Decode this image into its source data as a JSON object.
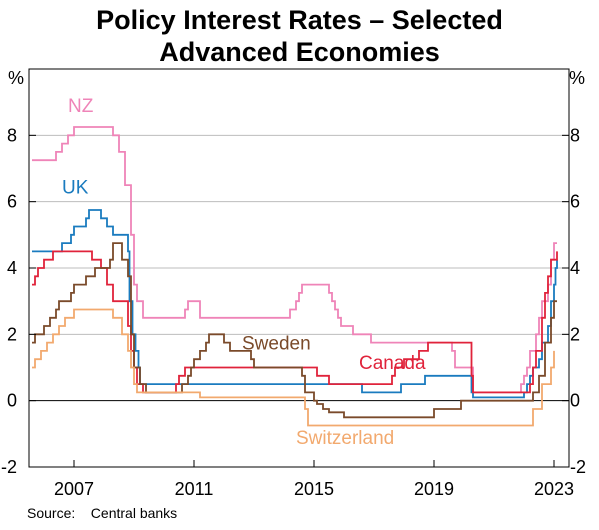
{
  "chart_data": {
    "type": "line",
    "title": "Policy Interest Rates – Selected Advanced Economies",
    "title_lines": [
      "Policy Interest Rates – Selected",
      "Advanced Economies"
    ],
    "y_unit_left": "%",
    "y_unit_right": "%",
    "ylim": [
      -2,
      10
    ],
    "yticks": [
      "-2",
      "0",
      "2",
      "4",
      "6",
      "8"
    ],
    "xlim": [
      2005.5,
      2023.5
    ],
    "xticks": [
      "2007",
      "2011",
      "2015",
      "2019",
      "2023"
    ],
    "grid": true,
    "source": "Source:    Central banks",
    "series": [
      {
        "name": "NZ",
        "color": "#ef84b8",
        "label_pos": [
          2006.8,
          8.7
        ],
        "points": [
          [
            2005.6,
            7.25
          ],
          [
            2006.3,
            7.25
          ],
          [
            2006.4,
            7.5
          ],
          [
            2006.6,
            7.75
          ],
          [
            2006.8,
            8.0
          ],
          [
            2007.0,
            8.25
          ],
          [
            2007.9,
            8.25
          ],
          [
            2008.3,
            8.0
          ],
          [
            2008.5,
            7.5
          ],
          [
            2008.7,
            6.5
          ],
          [
            2008.9,
            5.0
          ],
          [
            2009.0,
            3.5
          ],
          [
            2009.1,
            3.0
          ],
          [
            2009.3,
            2.5
          ],
          [
            2010.6,
            2.5
          ],
          [
            2010.7,
            2.75
          ],
          [
            2010.8,
            3.0
          ],
          [
            2011.1,
            3.0
          ],
          [
            2011.2,
            2.5
          ],
          [
            2014.1,
            2.5
          ],
          [
            2014.2,
            2.75
          ],
          [
            2014.4,
            3.0
          ],
          [
            2014.5,
            3.25
          ],
          [
            2014.6,
            3.5
          ],
          [
            2015.4,
            3.5
          ],
          [
            2015.5,
            3.25
          ],
          [
            2015.6,
            3.0
          ],
          [
            2015.7,
            2.75
          ],
          [
            2015.8,
            2.5
          ],
          [
            2015.9,
            2.25
          ],
          [
            2016.2,
            2.25
          ],
          [
            2016.3,
            2.0
          ],
          [
            2016.7,
            2.0
          ],
          [
            2016.9,
            1.75
          ],
          [
            2019.4,
            1.75
          ],
          [
            2019.6,
            1.5
          ],
          [
            2019.7,
            1.0
          ],
          [
            2020.2,
            1.0
          ],
          [
            2020.3,
            0.25
          ],
          [
            2021.8,
            0.25
          ],
          [
            2021.9,
            0.5
          ],
          [
            2022.0,
            0.75
          ],
          [
            2022.1,
            1.0
          ],
          [
            2022.2,
            1.5
          ],
          [
            2022.4,
            2.0
          ],
          [
            2022.5,
            2.5
          ],
          [
            2022.6,
            3.0
          ],
          [
            2022.8,
            3.5
          ],
          [
            2022.9,
            4.25
          ],
          [
            2023.0,
            4.75
          ],
          [
            2023.1,
            4.75
          ]
        ]
      },
      {
        "name": "UK",
        "color": "#1a7bbf",
        "label_pos": [
          2006.6,
          6.25
        ],
        "points": [
          [
            2005.6,
            4.5
          ],
          [
            2006.4,
            4.5
          ],
          [
            2006.6,
            4.75
          ],
          [
            2006.9,
            5.0
          ],
          [
            2007.0,
            5.25
          ],
          [
            2007.4,
            5.5
          ],
          [
            2007.5,
            5.75
          ],
          [
            2007.9,
            5.5
          ],
          [
            2008.1,
            5.25
          ],
          [
            2008.3,
            5.0
          ],
          [
            2008.8,
            4.5
          ],
          [
            2008.85,
            3.0
          ],
          [
            2008.95,
            2.0
          ],
          [
            2009.05,
            1.5
          ],
          [
            2009.15,
            1.0
          ],
          [
            2009.2,
            0.5
          ],
          [
            2016.5,
            0.5
          ],
          [
            2016.6,
            0.25
          ],
          [
            2017.8,
            0.25
          ],
          [
            2017.9,
            0.5
          ],
          [
            2018.6,
            0.5
          ],
          [
            2018.7,
            0.75
          ],
          [
            2020.2,
            0.75
          ],
          [
            2020.25,
            0.25
          ],
          [
            2020.3,
            0.1
          ],
          [
            2021.9,
            0.1
          ],
          [
            2022.0,
            0.25
          ],
          [
            2022.1,
            0.5
          ],
          [
            2022.2,
            0.75
          ],
          [
            2022.3,
            1.0
          ],
          [
            2022.5,
            1.25
          ],
          [
            2022.6,
            1.75
          ],
          [
            2022.8,
            2.25
          ],
          [
            2022.9,
            3.0
          ],
          [
            2023.0,
            3.5
          ],
          [
            2023.05,
            4.0
          ],
          [
            2023.1,
            4.25
          ]
        ]
      },
      {
        "name": "Canada",
        "color": "#e0233b",
        "label_pos": [
          2016.5,
          0.95
        ],
        "points": [
          [
            2005.6,
            3.5
          ],
          [
            2005.7,
            3.75
          ],
          [
            2005.8,
            4.0
          ],
          [
            2006.0,
            4.25
          ],
          [
            2006.3,
            4.5
          ],
          [
            2007.5,
            4.5
          ],
          [
            2007.6,
            4.25
          ],
          [
            2007.9,
            4.0
          ],
          [
            2008.1,
            3.5
          ],
          [
            2008.3,
            3.0
          ],
          [
            2008.8,
            2.25
          ],
          [
            2008.9,
            1.5
          ],
          [
            2009.0,
            1.0
          ],
          [
            2009.1,
            0.5
          ],
          [
            2009.3,
            0.25
          ],
          [
            2010.3,
            0.25
          ],
          [
            2010.4,
            0.5
          ],
          [
            2010.5,
            0.75
          ],
          [
            2010.7,
            1.0
          ],
          [
            2015.0,
            1.0
          ],
          [
            2015.1,
            0.75
          ],
          [
            2015.5,
            0.5
          ],
          [
            2017.5,
            0.5
          ],
          [
            2017.6,
            0.75
          ],
          [
            2017.7,
            1.0
          ],
          [
            2018.0,
            1.25
          ],
          [
            2018.5,
            1.5
          ],
          [
            2018.8,
            1.75
          ],
          [
            2020.2,
            1.75
          ],
          [
            2020.25,
            0.75
          ],
          [
            2020.3,
            0.25
          ],
          [
            2022.1,
            0.25
          ],
          [
            2022.2,
            0.5
          ],
          [
            2022.3,
            1.0
          ],
          [
            2022.4,
            1.5
          ],
          [
            2022.6,
            2.5
          ],
          [
            2022.7,
            3.25
          ],
          [
            2022.8,
            3.75
          ],
          [
            2022.9,
            4.25
          ],
          [
            2023.1,
            4.5
          ]
        ]
      },
      {
        "name": "Sweden",
        "color": "#7a4a2a",
        "label_pos": [
          2012.6,
          1.55
        ],
        "points": [
          [
            2005.6,
            1.75
          ],
          [
            2005.7,
            2.0
          ],
          [
            2006.0,
            2.25
          ],
          [
            2006.2,
            2.5
          ],
          [
            2006.4,
            2.75
          ],
          [
            2006.5,
            3.0
          ],
          [
            2006.9,
            3.25
          ],
          [
            2007.0,
            3.5
          ],
          [
            2007.4,
            3.75
          ],
          [
            2007.7,
            4.0
          ],
          [
            2008.2,
            4.25
          ],
          [
            2008.3,
            4.75
          ],
          [
            2008.6,
            4.25
          ],
          [
            2008.8,
            3.75
          ],
          [
            2008.9,
            2.0
          ],
          [
            2009.0,
            1.0
          ],
          [
            2009.2,
            0.5
          ],
          [
            2009.4,
            0.25
          ],
          [
            2010.5,
            0.25
          ],
          [
            2010.6,
            0.5
          ],
          [
            2010.8,
            0.75
          ],
          [
            2010.9,
            1.0
          ],
          [
            2011.0,
            1.25
          ],
          [
            2011.2,
            1.5
          ],
          [
            2011.4,
            1.75
          ],
          [
            2011.5,
            2.0
          ],
          [
            2011.9,
            2.0
          ],
          [
            2012.0,
            1.75
          ],
          [
            2012.2,
            1.5
          ],
          [
            2012.9,
            1.25
          ],
          [
            2013.0,
            1.0
          ],
          [
            2014.5,
            1.0
          ],
          [
            2014.6,
            0.75
          ],
          [
            2014.7,
            0.25
          ],
          [
            2015.0,
            0.0
          ],
          [
            2015.1,
            -0.1
          ],
          [
            2015.3,
            -0.25
          ],
          [
            2015.5,
            -0.35
          ],
          [
            2016.0,
            -0.5
          ],
          [
            2018.9,
            -0.5
          ],
          [
            2019.0,
            -0.25
          ],
          [
            2019.9,
            0.0
          ],
          [
            2022.2,
            0.0
          ],
          [
            2022.3,
            0.25
          ],
          [
            2022.5,
            0.75
          ],
          [
            2022.7,
            1.75
          ],
          [
            2022.9,
            2.5
          ],
          [
            2023.0,
            3.0
          ],
          [
            2023.1,
            3.0
          ]
        ]
      },
      {
        "name": "Switzerland",
        "color": "#f2a96e",
        "label_pos": [
          2014.4,
          -1.3
        ],
        "points": [
          [
            2005.6,
            1.0
          ],
          [
            2005.7,
            1.25
          ],
          [
            2005.9,
            1.5
          ],
          [
            2006.1,
            1.75
          ],
          [
            2006.3,
            2.0
          ],
          [
            2006.5,
            2.25
          ],
          [
            2006.7,
            2.5
          ],
          [
            2007.0,
            2.75
          ],
          [
            2008.1,
            2.75
          ],
          [
            2008.3,
            2.5
          ],
          [
            2008.6,
            2.0
          ],
          [
            2008.8,
            1.5
          ],
          [
            2008.9,
            1.0
          ],
          [
            2009.0,
            0.5
          ],
          [
            2009.1,
            0.25
          ],
          [
            2011.1,
            0.25
          ],
          [
            2011.2,
            0.1
          ],
          [
            2014.5,
            0.1
          ],
          [
            2014.7,
            -0.25
          ],
          [
            2014.8,
            -0.75
          ],
          [
            2022.2,
            -0.75
          ],
          [
            2022.3,
            -0.25
          ],
          [
            2022.6,
            0.5
          ],
          [
            2022.9,
            1.0
          ],
          [
            2023.0,
            1.5
          ]
        ]
      }
    ]
  }
}
